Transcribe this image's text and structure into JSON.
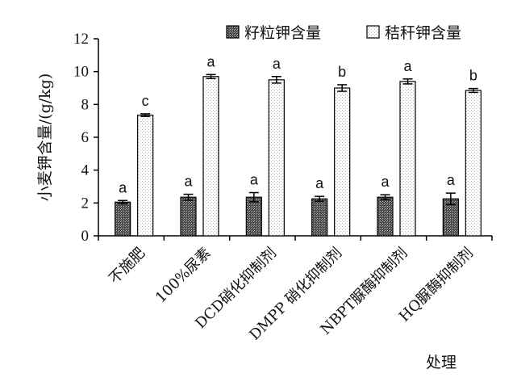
{
  "chart_data": {
    "type": "bar",
    "title": "",
    "ylabel": "小麦钾含量/(g/kg)",
    "xlabel": "处理",
    "ylim": [
      0,
      12
    ],
    "yticks": [
      0,
      2,
      4,
      6,
      8,
      10,
      12
    ],
    "categories": [
      "不施肥",
      "100%尿素",
      "DCD硝化抑制剂",
      "DMPP 硝化抑制剂",
      "NBPT脲酶抑制剂",
      "HQ脲酶抑制剂"
    ],
    "series": [
      {
        "name": "籽粒钾含量",
        "values": [
          2.05,
          2.35,
          2.35,
          2.25,
          2.35,
          2.25
        ],
        "errors": [
          0.1,
          0.18,
          0.28,
          0.15,
          0.15,
          0.35
        ],
        "sig": [
          "a",
          "a",
          "a",
          "a",
          "a",
          "a"
        ],
        "fill": "#555555"
      },
      {
        "name": "秸秆钾含量",
        "values": [
          7.35,
          9.7,
          9.5,
          9.0,
          9.4,
          8.85
        ],
        "errors": [
          0.08,
          0.12,
          0.2,
          0.2,
          0.15,
          0.12
        ],
        "sig": [
          "c",
          "a",
          "a",
          "b",
          "a",
          "b"
        ],
        "fill": "#f4f4f4"
      }
    ],
    "grid": false,
    "legend_position": "top-right"
  }
}
